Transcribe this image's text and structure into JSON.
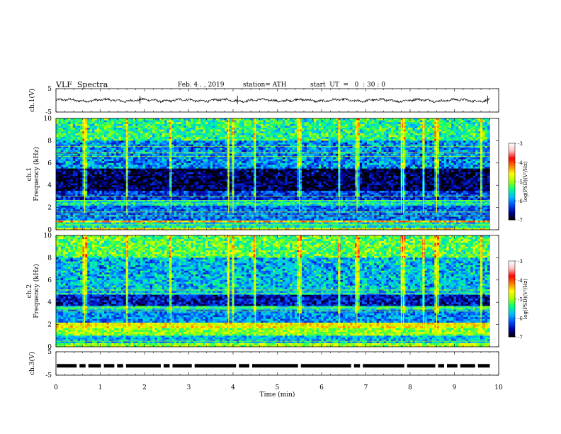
{
  "header": {
    "title": "VLF  Spectra",
    "date": "Feb. 4 . , 2019",
    "station": "station= ATH",
    "start_ut": "start  UT  =   0  : 30 : 0"
  },
  "chart_data": [
    {
      "type": "line",
      "name": "ch1-voltage",
      "ylabel": "ch.1(V)",
      "ylim": [
        -5,
        5
      ],
      "yticks": [
        "5",
        "-5"
      ],
      "xlim": [
        0,
        10
      ],
      "approx_level": 0,
      "approx_range": [
        -1,
        1
      ]
    },
    {
      "type": "heatmap",
      "name": "ch1-spectrogram",
      "ylabel": "ch.1\nFrequency  (kHz)",
      "ylabel_lines": [
        "ch.1",
        "Frequency  (kHz)"
      ],
      "ylim": [
        0,
        10
      ],
      "yticks": [
        "0",
        "2",
        "4",
        "6",
        "8",
        "10"
      ],
      "xlim": [
        0,
        9.8
      ],
      "colorbar": {
        "label": "log(PSD)(V²/Hz)",
        "range": [
          -7,
          -3
        ],
        "ticks": [
          "-3",
          "-4",
          "-5",
          "-6",
          "-7"
        ],
        "colors": [
          "#000000",
          "#0000a0",
          "#0050ff",
          "#00c0ff",
          "#00ff80",
          "#a0ff00",
          "#ffff00",
          "#ff8000",
          "#ff0000",
          "#ffc0c0",
          "#ffffff"
        ]
      },
      "bands": [
        {
          "f": [
            0,
            0.25
          ],
          "level": -4.6
        },
        {
          "f": [
            0.25,
            0.6
          ],
          "level": -5.6
        },
        {
          "f": [
            0.6,
            0.8
          ],
          "level": -4.3
        },
        {
          "f": [
            0.8,
            2.2
          ],
          "level": -6.1
        },
        {
          "f": [
            2.2,
            2.6
          ],
          "level": -5.6
        },
        {
          "f": [
            2.6,
            3.5
          ],
          "level": -6.3
        },
        {
          "f": [
            3.5,
            5.5
          ],
          "level": -6.8
        },
        {
          "f": [
            5.5,
            8.0
          ],
          "level": -6.0
        },
        {
          "f": [
            8.0,
            10.0
          ],
          "level": -5.4
        }
      ],
      "tones_khz": [
        0.45,
        0.8,
        1.25,
        1.6,
        2.35,
        2.65,
        3.0,
        6.6,
        6.9,
        7.5
      ],
      "events_min": [
        0.65,
        1.6,
        2.6,
        3.9,
        4.0,
        4.5,
        5.5,
        6.4,
        6.8,
        7.8,
        7.85,
        8.3,
        8.6,
        9.6
      ]
    },
    {
      "type": "heatmap",
      "name": "ch2-spectrogram",
      "ylabel": "ch.2\nFrequency  (kHz)",
      "ylabel_lines": [
        "ch.2",
        "Frequency  (kHz)"
      ],
      "ylim": [
        0,
        10
      ],
      "yticks": [
        "0",
        "2",
        "4",
        "6",
        "8",
        "10"
      ],
      "xlim": [
        0,
        9.8
      ],
      "colorbar": {
        "label": "log(PSD)(V²/Hz)",
        "range": [
          -7,
          -3
        ],
        "ticks": [
          "-3",
          "-4",
          "-5",
          "-6",
          "-7"
        ],
        "colors": [
          "#000000",
          "#0000a0",
          "#0050ff",
          "#00c0ff",
          "#00ff80",
          "#a0ff00",
          "#ffff00",
          "#ff8000",
          "#ff0000",
          "#ffc0c0",
          "#ffffff"
        ]
      },
      "bands": [
        {
          "f": [
            0,
            0.3
          ],
          "level": -5.0
        },
        {
          "f": [
            0.3,
            1.0
          ],
          "level": -5.8
        },
        {
          "f": [
            1.0,
            1.7
          ],
          "level": -5.0
        },
        {
          "f": [
            1.7,
            2.1
          ],
          "level": -4.6
        },
        {
          "f": [
            2.1,
            3.3
          ],
          "level": -6.0
        },
        {
          "f": [
            3.3,
            3.6
          ],
          "level": -5.5
        },
        {
          "f": [
            3.6,
            4.6
          ],
          "level": -6.5
        },
        {
          "f": [
            4.6,
            8.0
          ],
          "level": -5.8
        },
        {
          "f": [
            8.0,
            10.0
          ],
          "level": -5.2
        }
      ],
      "tones_khz": [
        0.5,
        1.2,
        1.95,
        3.2,
        3.5,
        4.8,
        5.1
      ],
      "events_min": [
        0.65,
        1.6,
        2.6,
        3.9,
        4.0,
        4.5,
        5.5,
        6.4,
        6.8,
        7.8,
        7.85,
        8.3,
        8.6,
        9.6
      ]
    },
    {
      "type": "line",
      "name": "ch3-voltage",
      "ylabel": "ch.3(V)",
      "ylim": [
        -5,
        5
      ],
      "yticks": [
        "5",
        "-5"
      ],
      "xlim": [
        0,
        10
      ],
      "approx_level": -1,
      "gaps_min": [
        0.5,
        0.7,
        1.05,
        1.35,
        1.55,
        2.4,
        2.6,
        3.1,
        4.1,
        4.4,
        5.5,
        6.7,
        6.9,
        7.9,
        8.6,
        8.8,
        9.1,
        9.5
      ]
    }
  ],
  "xaxis": {
    "label": "Time  (min)",
    "ticks": [
      "0",
      "1",
      "2",
      "3",
      "4",
      "5",
      "6",
      "7",
      "8",
      "9",
      "10"
    ]
  }
}
